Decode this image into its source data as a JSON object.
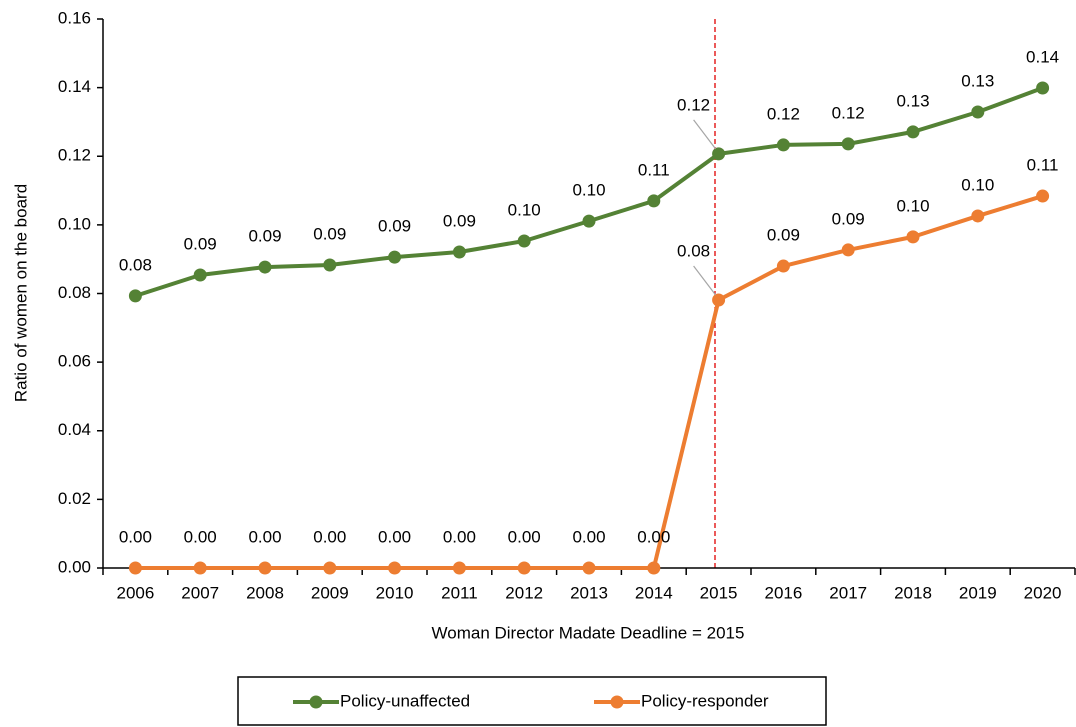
{
  "chart_data": {
    "type": "line",
    "xlabel": "Woman Director Madate Deadline = 2015",
    "ylabel": "Ratio of women on the board",
    "categories": [
      "2006",
      "2007",
      "2008",
      "2009",
      "2010",
      "2011",
      "2012",
      "2013",
      "2014",
      "2015",
      "2016",
      "2017",
      "2018",
      "2019",
      "2020"
    ],
    "series": [
      {
        "name": "Policy-unaffected",
        "color": "#548235",
        "values": [
          0.0793,
          0.0854,
          0.0877,
          0.0883,
          0.0906,
          0.0921,
          0.0953,
          0.1011,
          0.107,
          0.1207,
          0.1233,
          0.1236,
          0.1271,
          0.1329,
          0.1399
        ],
        "value_labels": [
          "0.08",
          "0.09",
          "0.09",
          "0.09",
          "0.09",
          "0.09",
          "0.10",
          "0.10",
          "0.11",
          "0.12",
          "0.12",
          "0.12",
          "0.13",
          "0.13",
          "0.14"
        ]
      },
      {
        "name": "Policy-responder",
        "color": "#ED7D31",
        "values": [
          0,
          0,
          0,
          0,
          0,
          0,
          0,
          0,
          0,
          0.0781,
          0.088,
          0.0927,
          0.0965,
          0.1026,
          0.1084
        ],
        "value_labels": [
          "0.00",
          "0.00",
          "0.00",
          "0.00",
          "0.00",
          "0.00",
          "0.00",
          "0.00",
          "0.00",
          "0.08",
          "0.09",
          "0.09",
          "0.10",
          "0.10",
          "0.11"
        ]
      }
    ],
    "ylim": [
      0,
      0.16
    ],
    "yticks": [
      {
        "value": 0,
        "label": "0.00"
      },
      {
        "value": 0.02,
        "label": "0.02"
      },
      {
        "value": 0.04,
        "label": "0.04"
      },
      {
        "value": 0.06,
        "label": "0.06"
      },
      {
        "value": 0.08,
        "label": "0.08"
      },
      {
        "value": 0.1,
        "label": "0.10"
      },
      {
        "value": 0.12,
        "label": "0.12"
      },
      {
        "value": 0.14,
        "label": "0.14"
      },
      {
        "value": 0.16,
        "label": "0.16"
      }
    ]
  }
}
